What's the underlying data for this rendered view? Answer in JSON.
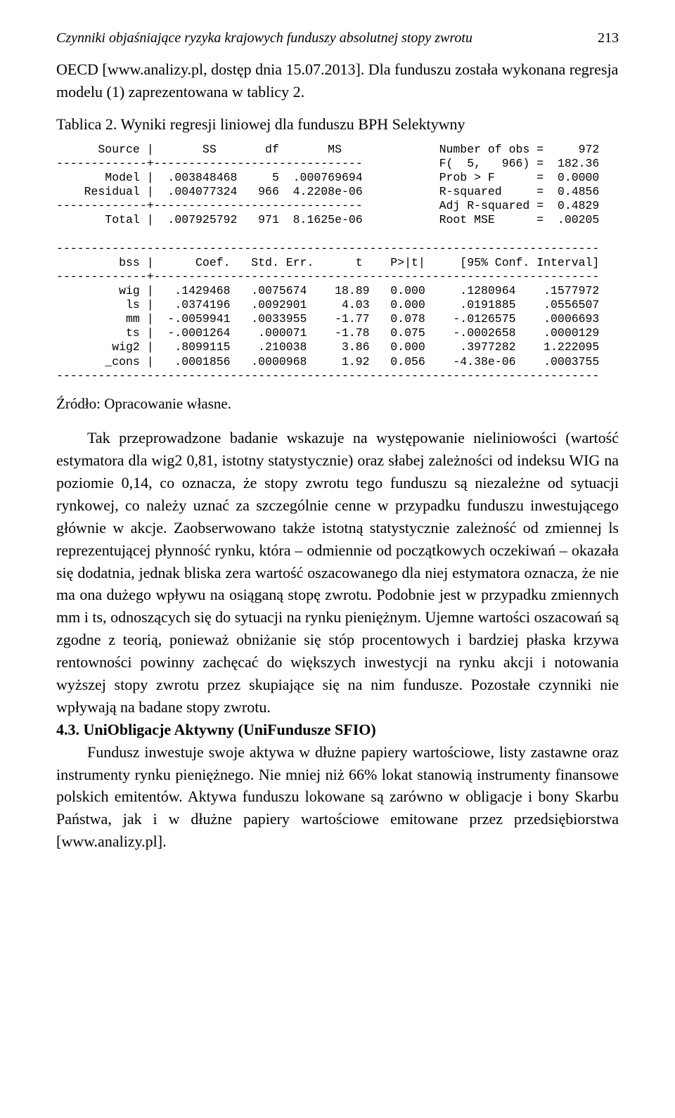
{
  "header": {
    "title": "Czynniki objaśniające ryzyka krajowych funduszy absolutnej stopy zwrotu",
    "page": "213"
  },
  "intro": "OECD [www.analizy.pl, dostęp dnia 15.07.2013]. Dla funduszu została wykonana regresja modelu (1) zaprezentowana w tablicy 2.",
  "table_title": "Tablica 2. Wyniki regresji liniowej dla funduszu BPH Selektywny",
  "stata": "      Source |       SS       df       MS              Number of obs =     972\n-------------+------------------------------           F(  5,   966) =  182.36\n       Model |  .003848468     5  .000769694           Prob > F      =  0.0000\n    Residual |  .004077324   966  4.2208e-06           R-squared     =  0.4856\n-------------+------------------------------           Adj R-squared =  0.4829\n       Total |  .007925792   971  8.1625e-06           Root MSE      =  .00205\n\n------------------------------------------------------------------------------\n         bss |      Coef.   Std. Err.      t    P>|t|     [95% Conf. Interval]\n-------------+----------------------------------------------------------------\n         wig |   .1429468   .0075674    18.89   0.000     .1280964    .1577972\n          ls |   .0374196   .0092901     4.03   0.000     .0191885    .0556507\n          mm |  -.0059941   .0033955    -1.77   0.078    -.0126575    .0006693\n          ts |  -.0001264    .000071    -1.78   0.075    -.0002658    .0000129\n        wig2 |   .8099115    .210038     3.86   0.000     .3977282    1.222095\n       _cons |   .0001856   .0000968     1.92   0.056    -4.38e-06    .0003755\n------------------------------------------------------------------------------",
  "source_note": "Źródło: Opracowanie własne.",
  "para1": "Tak przeprowadzone badanie wskazuje na występowanie nieliniowości (wartość estymatora dla wig2 0,81, istotny statystycznie) oraz słabej zależności od indeksu WIG na poziomie 0,14, co oznacza, że stopy zwrotu tego funduszu są niezależne od sytuacji rynkowej, co należy uznać za szczególnie cenne w przypadku funduszu inwestującego głównie w akcje. Zaobserwowano także istotną statystycznie zależność od zmiennej ls reprezentującej płynność rynku, która – odmiennie od początkowych oczekiwań – okazała się dodatnia, jednak bliska zera wartość oszacowanego dla niej estymatora oznacza, że nie ma ona dużego wpływu na osiąganą stopę zwrotu. Podobnie jest w przypadku zmiennych mm i ts, odnoszących się do sytuacji na rynku pieniężnym. Ujemne wartości oszacowań są zgodne z teorią, ponieważ obniżanie się stóp procentowych i bardziej płaska krzywa rentowności powinny zachęcać do większych inwestycji na rynku akcji i notowania wyższej stopy zwrotu przez skupiające się na nim fundusze. Pozostałe czynniki nie wpływają na badane stopy zwrotu.",
  "sec_num": "4.3. UniObligacje Aktywny (UniFundusze SFIO)",
  "para2": "Fundusz inwestuje swoje aktywa w dłużne papiery wartościowe, listy zastawne oraz instrumenty rynku pieniężnego. Nie mniej niż 66% lokat stanowią instrumenty finansowe polskich emitentów. Aktywa funduszu lokowane są zarówno w obligacje i bony Skarbu Państwa, jak i w dłużne papiery wartościowe emitowane przez przedsiębiorstwa [www.analizy.pl]."
}
